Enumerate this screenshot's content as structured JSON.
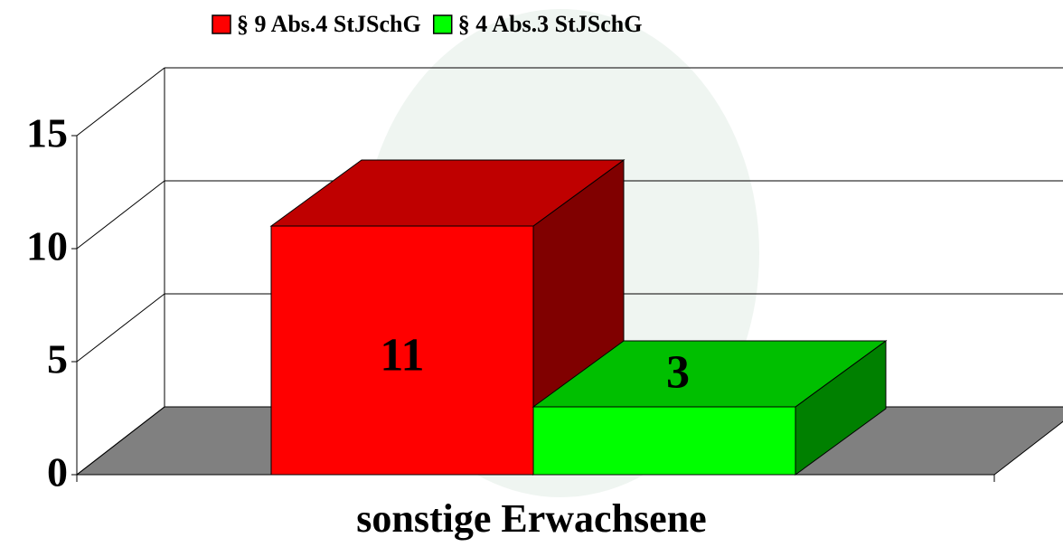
{
  "chart_data": {
    "type": "bar3d",
    "categories": [
      "sonstige Erwachsene"
    ],
    "series": [
      {
        "name": "§ 9 Abs.4 StJSchG",
        "color": "#ff0000",
        "values": [
          11
        ]
      },
      {
        "name": "§ 4 Abs.3 StJSchG",
        "color": "#00ff00",
        "values": [
          3
        ]
      }
    ],
    "ylim": [
      0,
      15
    ],
    "yticks": [
      0,
      5,
      10,
      15
    ],
    "grid": true
  }
}
